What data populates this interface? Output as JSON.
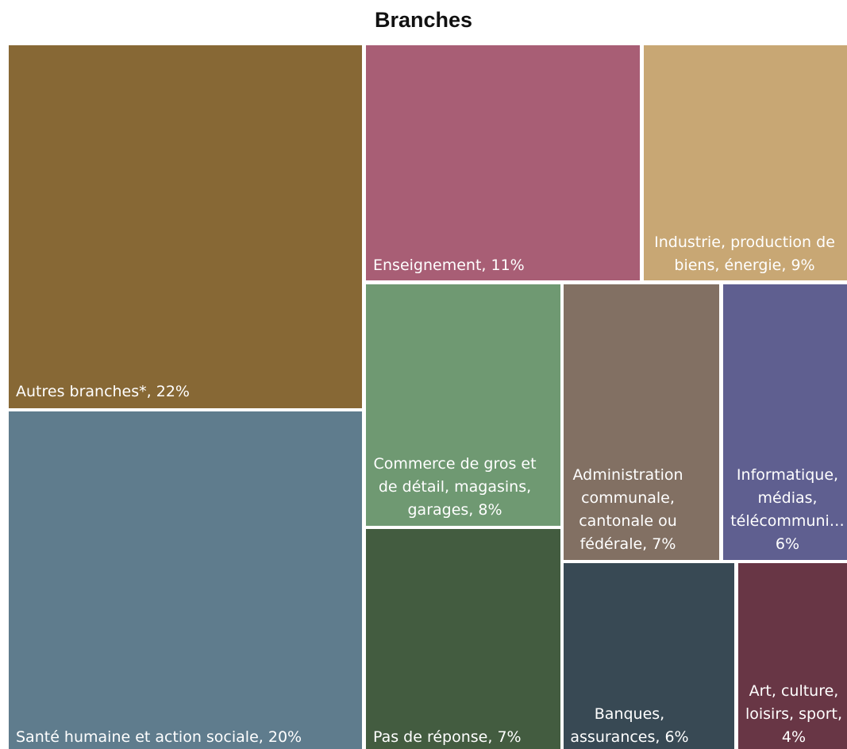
{
  "chart_data": {
    "type": "treemap",
    "title": "Branches",
    "unit": "%",
    "values": [
      {
        "label": "Autres branches*, 22%",
        "name": "Autres branches*",
        "value": 22,
        "color": "#876835"
      },
      {
        "label": "Santé humaine et action sociale, 20%",
        "name": "Santé humaine et action sociale",
        "value": 20,
        "color": "#5f7c8d"
      },
      {
        "label": "Enseignement, 11%",
        "name": "Enseignement",
        "value": 11,
        "color": "#a85e75"
      },
      {
        "label": "Industrie, production de biens, énergie, 9%",
        "name": "Industrie, production de biens, énergie",
        "value": 9,
        "color": "#c8a774"
      },
      {
        "label": "Commerce de gros et de détail, magasins, garages, 8%",
        "name": "Commerce de gros et de détail, magasins, garages",
        "value": 8,
        "color": "#6f9972"
      },
      {
        "label": "Administration communale, cantonale ou fédérale, 7%",
        "name": "Administration communale, cantonale ou fédérale",
        "value": 7,
        "color": "#827063"
      },
      {
        "label": "Informatique, médias, télécommuni… 6%",
        "name": "Informatique, médias, télécommuni…",
        "value": 6,
        "color": "#5f5f90"
      },
      {
        "label": "Pas de réponse, 7%",
        "name": "Pas de réponse",
        "value": 7,
        "color": "#435c40"
      },
      {
        "label": "Banques, assurances, 6%",
        "name": "Banques, assurances",
        "value": 6,
        "color": "#384954"
      },
      {
        "label": "Art, culture, loisirs, sport, 4%",
        "name": "Art, culture, loisirs, sport",
        "value": 4,
        "color": "#683645"
      }
    ]
  }
}
